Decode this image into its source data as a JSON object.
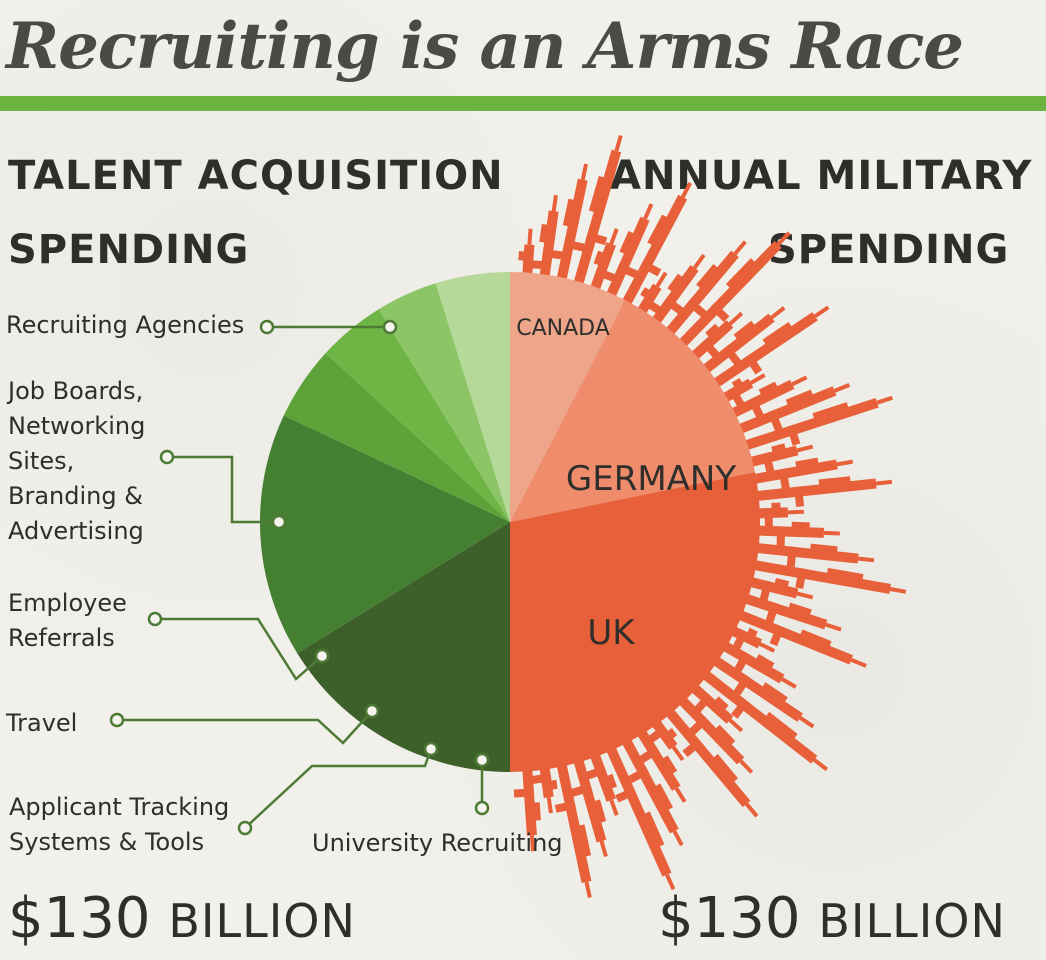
{
  "chart_data": {
    "type": "pie",
    "title": "Recruiting is an Arms Race",
    "left": {
      "heading_line1": "TALENT ACQUISITION",
      "heading_line2": "SPENDING",
      "total_number": "$130",
      "total_unit": "BILLION",
      "slices": [
        {
          "label": "Recruiting Agencies",
          "value": 16.2,
          "color": "#3d5f2a"
        },
        {
          "label": "Job Boards, Networking Sites, Branding & Advertising",
          "value": 15.8,
          "color": "#457f32"
        },
        {
          "label": "Employee Referrals",
          "value": 4.8,
          "color": "#5ea33a"
        },
        {
          "label": "Travel",
          "value": 4.4,
          "color": "#6fb546"
        },
        {
          "label": "Applicant Tracking Systems & Tools",
          "value": 4.0,
          "color": "#8cc565"
        },
        {
          "label": "University Recruiting",
          "value": 4.8,
          "color": "#b6d99a"
        }
      ]
    },
    "right": {
      "heading_line1": "ANNUAL MILITARY",
      "heading_line2": "SPENDING",
      "total_number": "$130",
      "total_unit": "BILLION",
      "slices": [
        {
          "label": "CANADA",
          "value": 7.6,
          "color": "#efa58a"
        },
        {
          "label": "GERMANY",
          "value": 14.2,
          "color": "#ee8c6b"
        },
        {
          "label": "UK",
          "value": 28.2,
          "color": "#e8603a"
        }
      ]
    }
  },
  "labels": {
    "recruiting_agencies": "Recruiting Agencies",
    "job_boards": [
      "Job Boards,",
      "Networking",
      "Sites,",
      "Branding &",
      "Advertising"
    ],
    "employee_referrals": [
      "Employee",
      "Referrals"
    ],
    "travel": "Travel",
    "ats": [
      "Applicant Tracking",
      "Systems & Tools"
    ],
    "university": "University Recruiting"
  },
  "colors": {
    "accent_rule": "#6db33f",
    "connector": "#4d7a34",
    "weapons": "#e8603a"
  }
}
